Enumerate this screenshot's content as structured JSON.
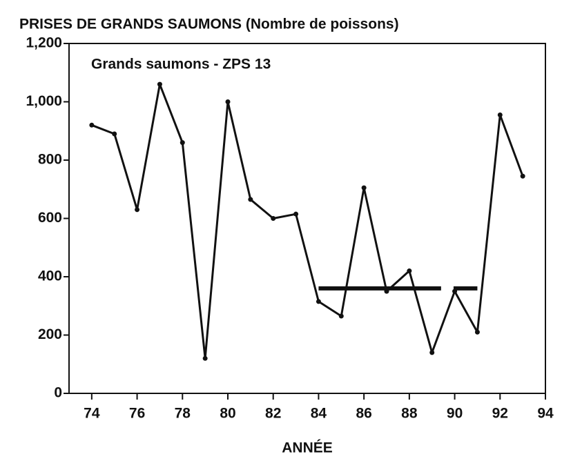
{
  "chart_data": {
    "type": "line",
    "title": "PRISES DE GRANDS SAUMONS (Nombre de poissons)",
    "annotation": "Grands  saumons - ZPS 13",
    "xlabel": "ANNÉE",
    "x": [
      74,
      75,
      76,
      77,
      78,
      79,
      80,
      81,
      82,
      83,
      84,
      85,
      86,
      87,
      88,
      89,
      90,
      91,
      92,
      93
    ],
    "series": [
      {
        "color": "#111111",
        "values": [
          920,
          890,
          630,
          1060,
          860,
          120,
          1000,
          665,
          600,
          615,
          315,
          265,
          705,
          350,
          420,
          140,
          350,
          210,
          955,
          745
        ]
      }
    ],
    "reference_segments": [
      {
        "x": [
          84,
          89.4
        ],
        "value": 360
      },
      {
        "x": [
          89.95,
          91
        ],
        "value": 360
      }
    ],
    "xlim": [
      73,
      94
    ],
    "xticks": [
      74,
      76,
      78,
      80,
      82,
      84,
      86,
      88,
      90,
      92,
      94
    ],
    "ylim": [
      0,
      1200
    ],
    "yticks": [
      0,
      200,
      400,
      600,
      800,
      {
        "value": 1000,
        "label": "1,000"
      },
      {
        "value": 1200,
        "label": "1,200"
      }
    ]
  }
}
